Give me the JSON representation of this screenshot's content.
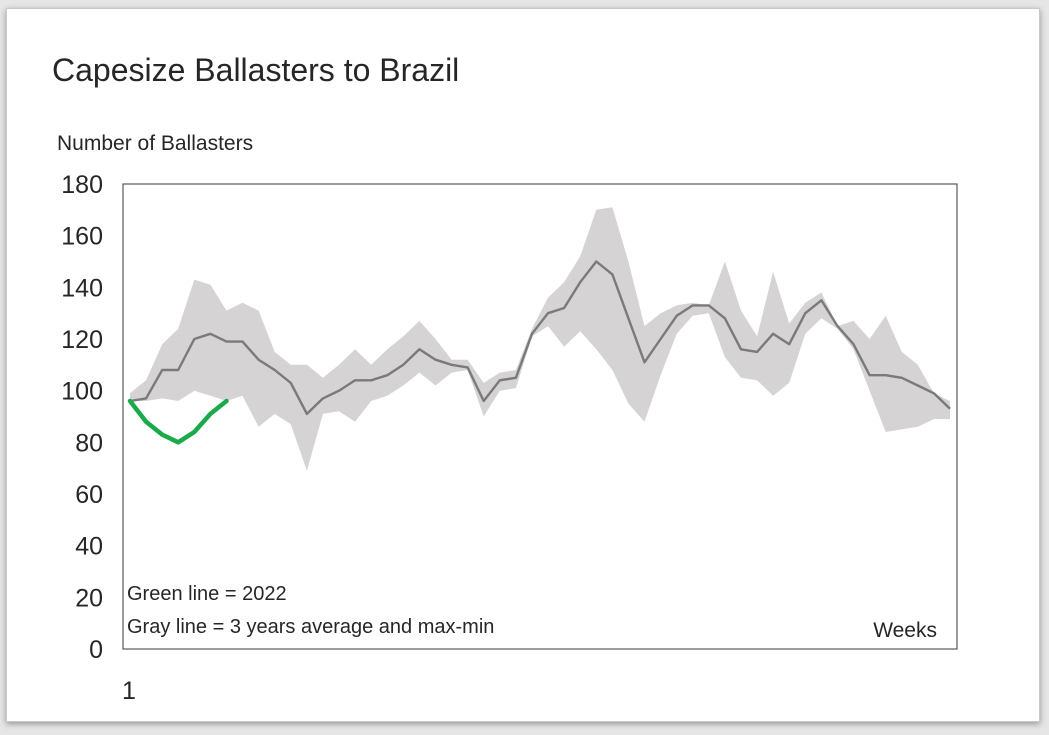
{
  "chart_data": {
    "type": "line",
    "title": "Capesize Ballasters to Brazil",
    "ylabel": "Number of Ballasters",
    "xlabel": "Weeks",
    "ylim": [
      0,
      180
    ],
    "yticks": [
      "0",
      "20",
      "40",
      "60",
      "80",
      "100",
      "120",
      "140",
      "160",
      "180"
    ],
    "xticks": [
      "1"
    ],
    "xlim": [
      1,
      52
    ],
    "annotations": [
      "Green line = 2022",
      "Gray line = 3 years average and max-min"
    ],
    "colors": {
      "green": "#1aaa4a",
      "gray_line": "#7a7a7a",
      "band": "#d5d3d3",
      "axis": "#595959"
    },
    "series": [
      {
        "name": "2022",
        "color": "#1aaa4a",
        "x": [
          1,
          2,
          3,
          4,
          5,
          6,
          7
        ],
        "values": [
          96,
          88,
          83,
          80,
          84,
          91,
          96
        ]
      },
      {
        "name": "3 years average",
        "color": "#7a7a7a",
        "x": [
          1,
          2,
          3,
          4,
          5,
          6,
          7,
          8,
          9,
          10,
          11,
          12,
          13,
          14,
          15,
          16,
          17,
          18,
          19,
          20,
          21,
          22,
          23,
          24,
          25,
          26,
          27,
          28,
          29,
          30,
          31,
          32,
          33,
          34,
          35,
          36,
          37,
          38,
          39,
          40,
          41,
          42,
          43,
          44,
          45,
          46,
          47,
          48,
          49,
          50,
          51,
          52
        ],
        "values": [
          96,
          97,
          108,
          108,
          120,
          122,
          119,
          119,
          112,
          108,
          103,
          91,
          97,
          100,
          104,
          104,
          106,
          110,
          116,
          112,
          110,
          109,
          96,
          104,
          105,
          122,
          130,
          132,
          142,
          150,
          145,
          128,
          111,
          120,
          129,
          133,
          133,
          128,
          116,
          115,
          122,
          118,
          130,
          135,
          125,
          118,
          106,
          106,
          105,
          102,
          99,
          93
        ]
      },
      {
        "name": "3 years max",
        "x": [
          1,
          2,
          3,
          4,
          5,
          6,
          7,
          8,
          9,
          10,
          11,
          12,
          13,
          14,
          15,
          16,
          17,
          18,
          19,
          20,
          21,
          22,
          23,
          24,
          25,
          26,
          27,
          28,
          29,
          30,
          31,
          32,
          33,
          34,
          35,
          36,
          37,
          38,
          39,
          40,
          41,
          42,
          43,
          44,
          45,
          46,
          47,
          48,
          49,
          50,
          51,
          52
        ],
        "values": [
          99,
          104,
          118,
          124,
          143,
          141,
          131,
          134,
          131,
          115,
          110,
          110,
          105,
          110,
          116,
          110,
          116,
          121,
          127,
          120,
          112,
          112,
          103,
          107,
          108,
          124,
          136,
          142,
          152,
          170,
          171,
          150,
          125,
          130,
          133,
          134,
          133,
          150,
          131,
          121,
          146,
          126,
          134,
          138,
          125,
          127,
          120,
          129,
          115,
          110,
          99,
          96
        ]
      },
      {
        "name": "3 years min",
        "x": [
          1,
          2,
          3,
          4,
          5,
          6,
          7,
          8,
          9,
          10,
          11,
          12,
          13,
          14,
          15,
          16,
          17,
          18,
          19,
          20,
          21,
          22,
          23,
          24,
          25,
          26,
          27,
          28,
          29,
          30,
          31,
          32,
          33,
          34,
          35,
          36,
          37,
          38,
          39,
          40,
          41,
          42,
          43,
          44,
          45,
          46,
          47,
          48,
          49,
          50,
          51,
          52
        ],
        "values": [
          96,
          96,
          97,
          96,
          100,
          98,
          96,
          98,
          86,
          91,
          87,
          69,
          91,
          92,
          88,
          96,
          98,
          102,
          107,
          102,
          107,
          108,
          90,
          100,
          101,
          121,
          125,
          117,
          123,
          116,
          108,
          95,
          88,
          106,
          122,
          129,
          130,
          113,
          105,
          104,
          98,
          103,
          122,
          128,
          124,
          116,
          100,
          84,
          85,
          86,
          89,
          89
        ]
      }
    ]
  }
}
